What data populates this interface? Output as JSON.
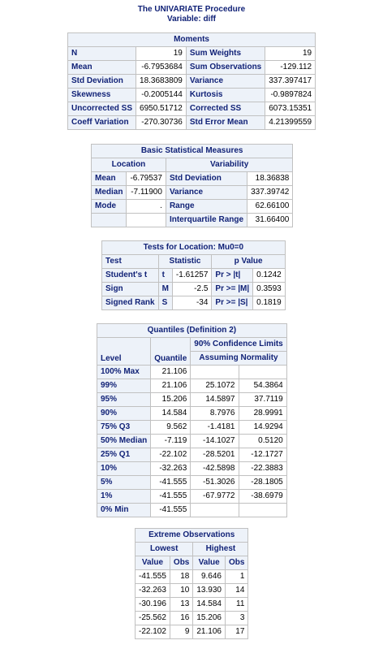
{
  "header": {
    "procedure": "The UNIVARIATE Procedure",
    "variable": "Variable: diff"
  },
  "moments": {
    "title": "Moments",
    "rows": [
      [
        "N",
        "19",
        "Sum Weights",
        "19"
      ],
      [
        "Mean",
        "-6.7953684",
        "Sum Observations",
        "-129.112"
      ],
      [
        "Std Deviation",
        "18.3683809",
        "Variance",
        "337.397417"
      ],
      [
        "Skewness",
        "-0.2005144",
        "Kurtosis",
        "-0.9897824"
      ],
      [
        "Uncorrected SS",
        "6950.51712",
        "Corrected SS",
        "6073.15351"
      ],
      [
        "Coeff Variation",
        "-270.30736",
        "Std Error Mean",
        "4.21399559"
      ]
    ]
  },
  "basic": {
    "title": "Basic Statistical Measures",
    "location_label": "Location",
    "variability_label": "Variability",
    "rows": [
      [
        "Mean",
        "-6.79537",
        "Std Deviation",
        "18.36838"
      ],
      [
        "Median",
        "-7.11900",
        "Variance",
        "337.39742"
      ],
      [
        "Mode",
        ".",
        "Range",
        "62.66100"
      ],
      [
        "",
        "",
        "Interquartile Range",
        "31.66400"
      ]
    ]
  },
  "tests": {
    "title": "Tests for Location: Mu0=0",
    "headers": [
      "Test",
      "Statistic",
      "p Value"
    ],
    "rows": [
      [
        "Student's t",
        "t",
        "-1.61257",
        "Pr > |t|",
        "0.1242"
      ],
      [
        "Sign",
        "M",
        "-2.5",
        "Pr >= |M|",
        "0.3593"
      ],
      [
        "Signed Rank",
        "S",
        "-34",
        "Pr >= |S|",
        "0.1819"
      ]
    ]
  },
  "quantiles": {
    "title": "Quantiles (Definition 2)",
    "level_label": "Level",
    "quantile_label": "Quantile",
    "ci_label_1": "90% Confidence Limits",
    "ci_label_2": "Assuming Normality",
    "rows": [
      [
        "100% Max",
        "21.106",
        "",
        ""
      ],
      [
        "99%",
        "21.106",
        "25.1072",
        "54.3864"
      ],
      [
        "95%",
        "15.206",
        "14.5897",
        "37.7119"
      ],
      [
        "90%",
        "14.584",
        "8.7976",
        "28.9991"
      ],
      [
        "75% Q3",
        "9.562",
        "-1.4181",
        "14.9294"
      ],
      [
        "50% Median",
        "-7.119",
        "-14.1027",
        "0.5120"
      ],
      [
        "25% Q1",
        "-22.102",
        "-28.5201",
        "-12.1727"
      ],
      [
        "10%",
        "-32.263",
        "-42.5898",
        "-22.3883"
      ],
      [
        "5%",
        "-41.555",
        "-51.3026",
        "-28.1805"
      ],
      [
        "1%",
        "-41.555",
        "-67.9772",
        "-38.6979"
      ],
      [
        "0% Min",
        "-41.555",
        "",
        ""
      ]
    ]
  },
  "extreme": {
    "title": "Extreme Observations",
    "lowest_label": "Lowest",
    "highest_label": "Highest",
    "value_label": "Value",
    "obs_label": "Obs",
    "rows": [
      [
        "-41.555",
        "18",
        "9.646",
        "1"
      ],
      [
        "-32.263",
        "10",
        "13.930",
        "14"
      ],
      [
        "-30.196",
        "13",
        "14.584",
        "11"
      ],
      [
        "-25.562",
        "16",
        "15.206",
        "3"
      ],
      [
        "-22.102",
        "9",
        "21.106",
        "17"
      ]
    ]
  }
}
